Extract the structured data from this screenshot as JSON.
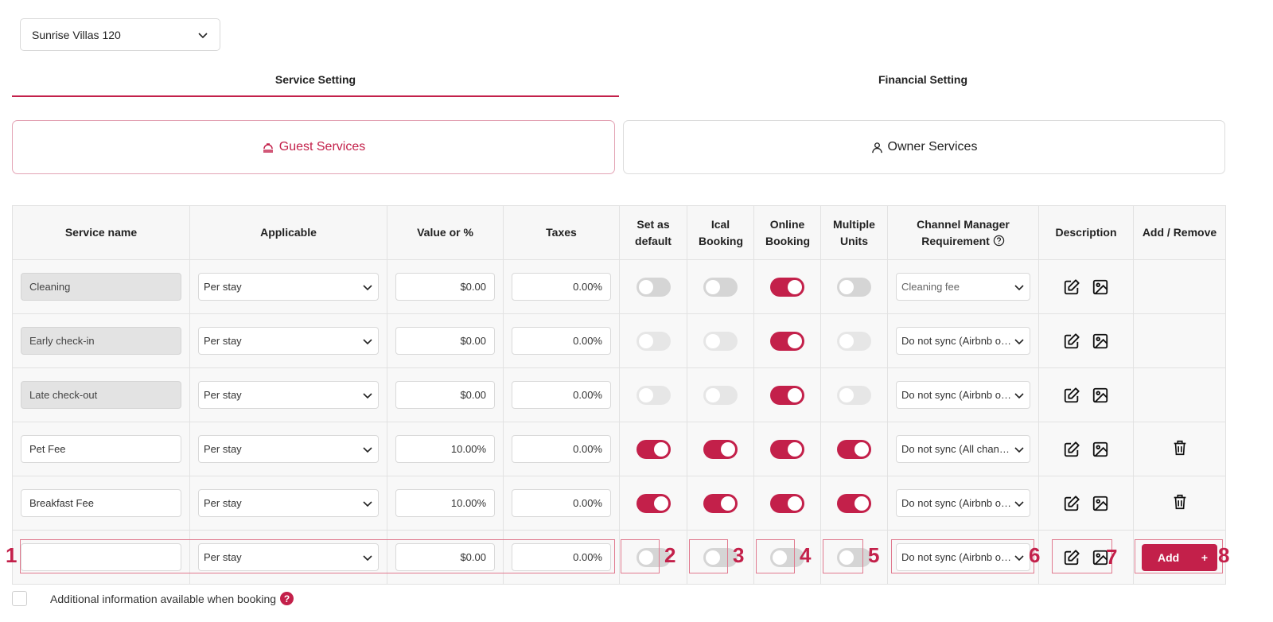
{
  "property_select": {
    "value": "Sunrise Villas 120"
  },
  "tabs": [
    {
      "label": "Service Setting"
    },
    {
      "label": "Financial Setting"
    }
  ],
  "service_types": [
    {
      "label": "Guest Services"
    },
    {
      "label": "Owner Services"
    }
  ],
  "table": {
    "headers": [
      "Service name",
      "Applicable",
      "Value or %",
      "Taxes",
      "Set as default",
      "Ical Booking",
      "Online Booking",
      "Multiple Units",
      "Channel Manager Requirement",
      "Description",
      "Add / Remove"
    ],
    "rows": [
      {
        "name": "Cleaning",
        "applicable": "Per stay",
        "value": "$0.00",
        "taxes": "0.00%",
        "default": false,
        "ical": false,
        "online": true,
        "multi": false,
        "channel": "Cleaning fee"
      },
      {
        "name": "Early check-in",
        "applicable": "Per stay",
        "value": "$0.00",
        "taxes": "0.00%",
        "default": false,
        "ical": false,
        "online": true,
        "multi": false,
        "channel": "Do not sync (Airbnb o…"
      },
      {
        "name": "Late check-out",
        "applicable": "Per stay",
        "value": "$0.00",
        "taxes": "0.00%",
        "default": false,
        "ical": false,
        "online": true,
        "multi": false,
        "channel": "Do not sync (Airbnb o…"
      },
      {
        "name": "Pet Fee",
        "applicable": "Per stay",
        "value": "10.00%",
        "taxes": "0.00%",
        "default": true,
        "ical": true,
        "online": true,
        "multi": true,
        "channel": "Do not sync (All chan…"
      },
      {
        "name": "Breakfast Fee",
        "applicable": "Per stay",
        "value": "10.00%",
        "taxes": "0.00%",
        "default": true,
        "ical": true,
        "online": true,
        "multi": true,
        "channel": "Do not sync (Airbnb o…"
      }
    ],
    "new_row": {
      "name": "",
      "applicable": "Per stay",
      "value": "$0.00",
      "taxes": "0.00%",
      "channel": "Do not sync (Airbnb o…",
      "add_label": "Add"
    }
  },
  "annotations": [
    "1",
    "2",
    "3",
    "4",
    "5",
    "6",
    "7",
    "8"
  ],
  "footer": {
    "label": "Additional information available when booking",
    "help": "?"
  },
  "colors": {
    "accent": "#c3204a"
  }
}
